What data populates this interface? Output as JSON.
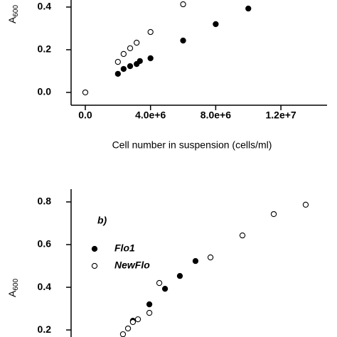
{
  "chart_data": [
    {
      "type": "scatter",
      "y_label": {
        "text": "A",
        "subscript": "600"
      },
      "x_label": "Cell number in suspension (cells/ml)",
      "xlim": [
        -872000,
        14830000
      ],
      "xticks": [
        {
          "value": 0,
          "label": "0.0"
        },
        {
          "value": 4000000,
          "label": "4.0e+6"
        },
        {
          "value": 8000000,
          "label": "8.0e+6"
        },
        {
          "value": 12000000,
          "label": "1.2e+7"
        }
      ],
      "ylim": [
        -0.06,
        0.433
      ],
      "yticks": [
        {
          "value": 0,
          "label": "0.0"
        },
        {
          "value": 0.2,
          "label": "0.2"
        },
        {
          "value": 0.4,
          "label": "0.4"
        }
      ],
      "series": [
        {
          "marker": "open",
          "color": "#000000",
          "x": [
            0,
            2000000,
            2350000,
            2750000,
            3150000,
            4000000,
            6000000
          ],
          "values": [
            0,
            0.143,
            0.18,
            0.207,
            0.233,
            0.283,
            0.413
          ]
        },
        {
          "marker": "filled",
          "color": "#000000",
          "x": [
            2000000,
            2350000,
            2750000,
            3150000,
            3350000,
            4000000,
            6000000,
            8000000,
            10000000
          ],
          "values": [
            0.087,
            0.11,
            0.123,
            0.133,
            0.147,
            0.16,
            0.243,
            0.32,
            0.393
          ]
        }
      ]
    },
    {
      "type": "scatter",
      "annotation": "b)",
      "y_label": {
        "text": "A",
        "subscript": "600"
      },
      "xlim": [
        -872000,
        14830000
      ],
      "ylim": [
        0.167,
        0.86
      ],
      "yticks": [
        0.2,
        0.4,
        0.6,
        0.8
      ],
      "series": [
        {
          "name": "Flo1",
          "marker": "filled",
          "color": "#000000",
          "x": [
            2920000,
            3930000,
            4890000,
            5800000,
            6760000
          ],
          "values": [
            0.243,
            0.32,
            0.393,
            0.453,
            0.523
          ]
        },
        {
          "name": "NewFlo",
          "marker": "open",
          "color": "#000000",
          "x": [
            2310000,
            2620000,
            2920000,
            3230000,
            3930000,
            4540000,
            7680000,
            9640000,
            11560000,
            13520000
          ],
          "values": [
            0.18,
            0.207,
            0.237,
            0.25,
            0.28,
            0.42,
            0.54,
            0.643,
            0.743,
            0.787
          ]
        }
      ]
    }
  ]
}
